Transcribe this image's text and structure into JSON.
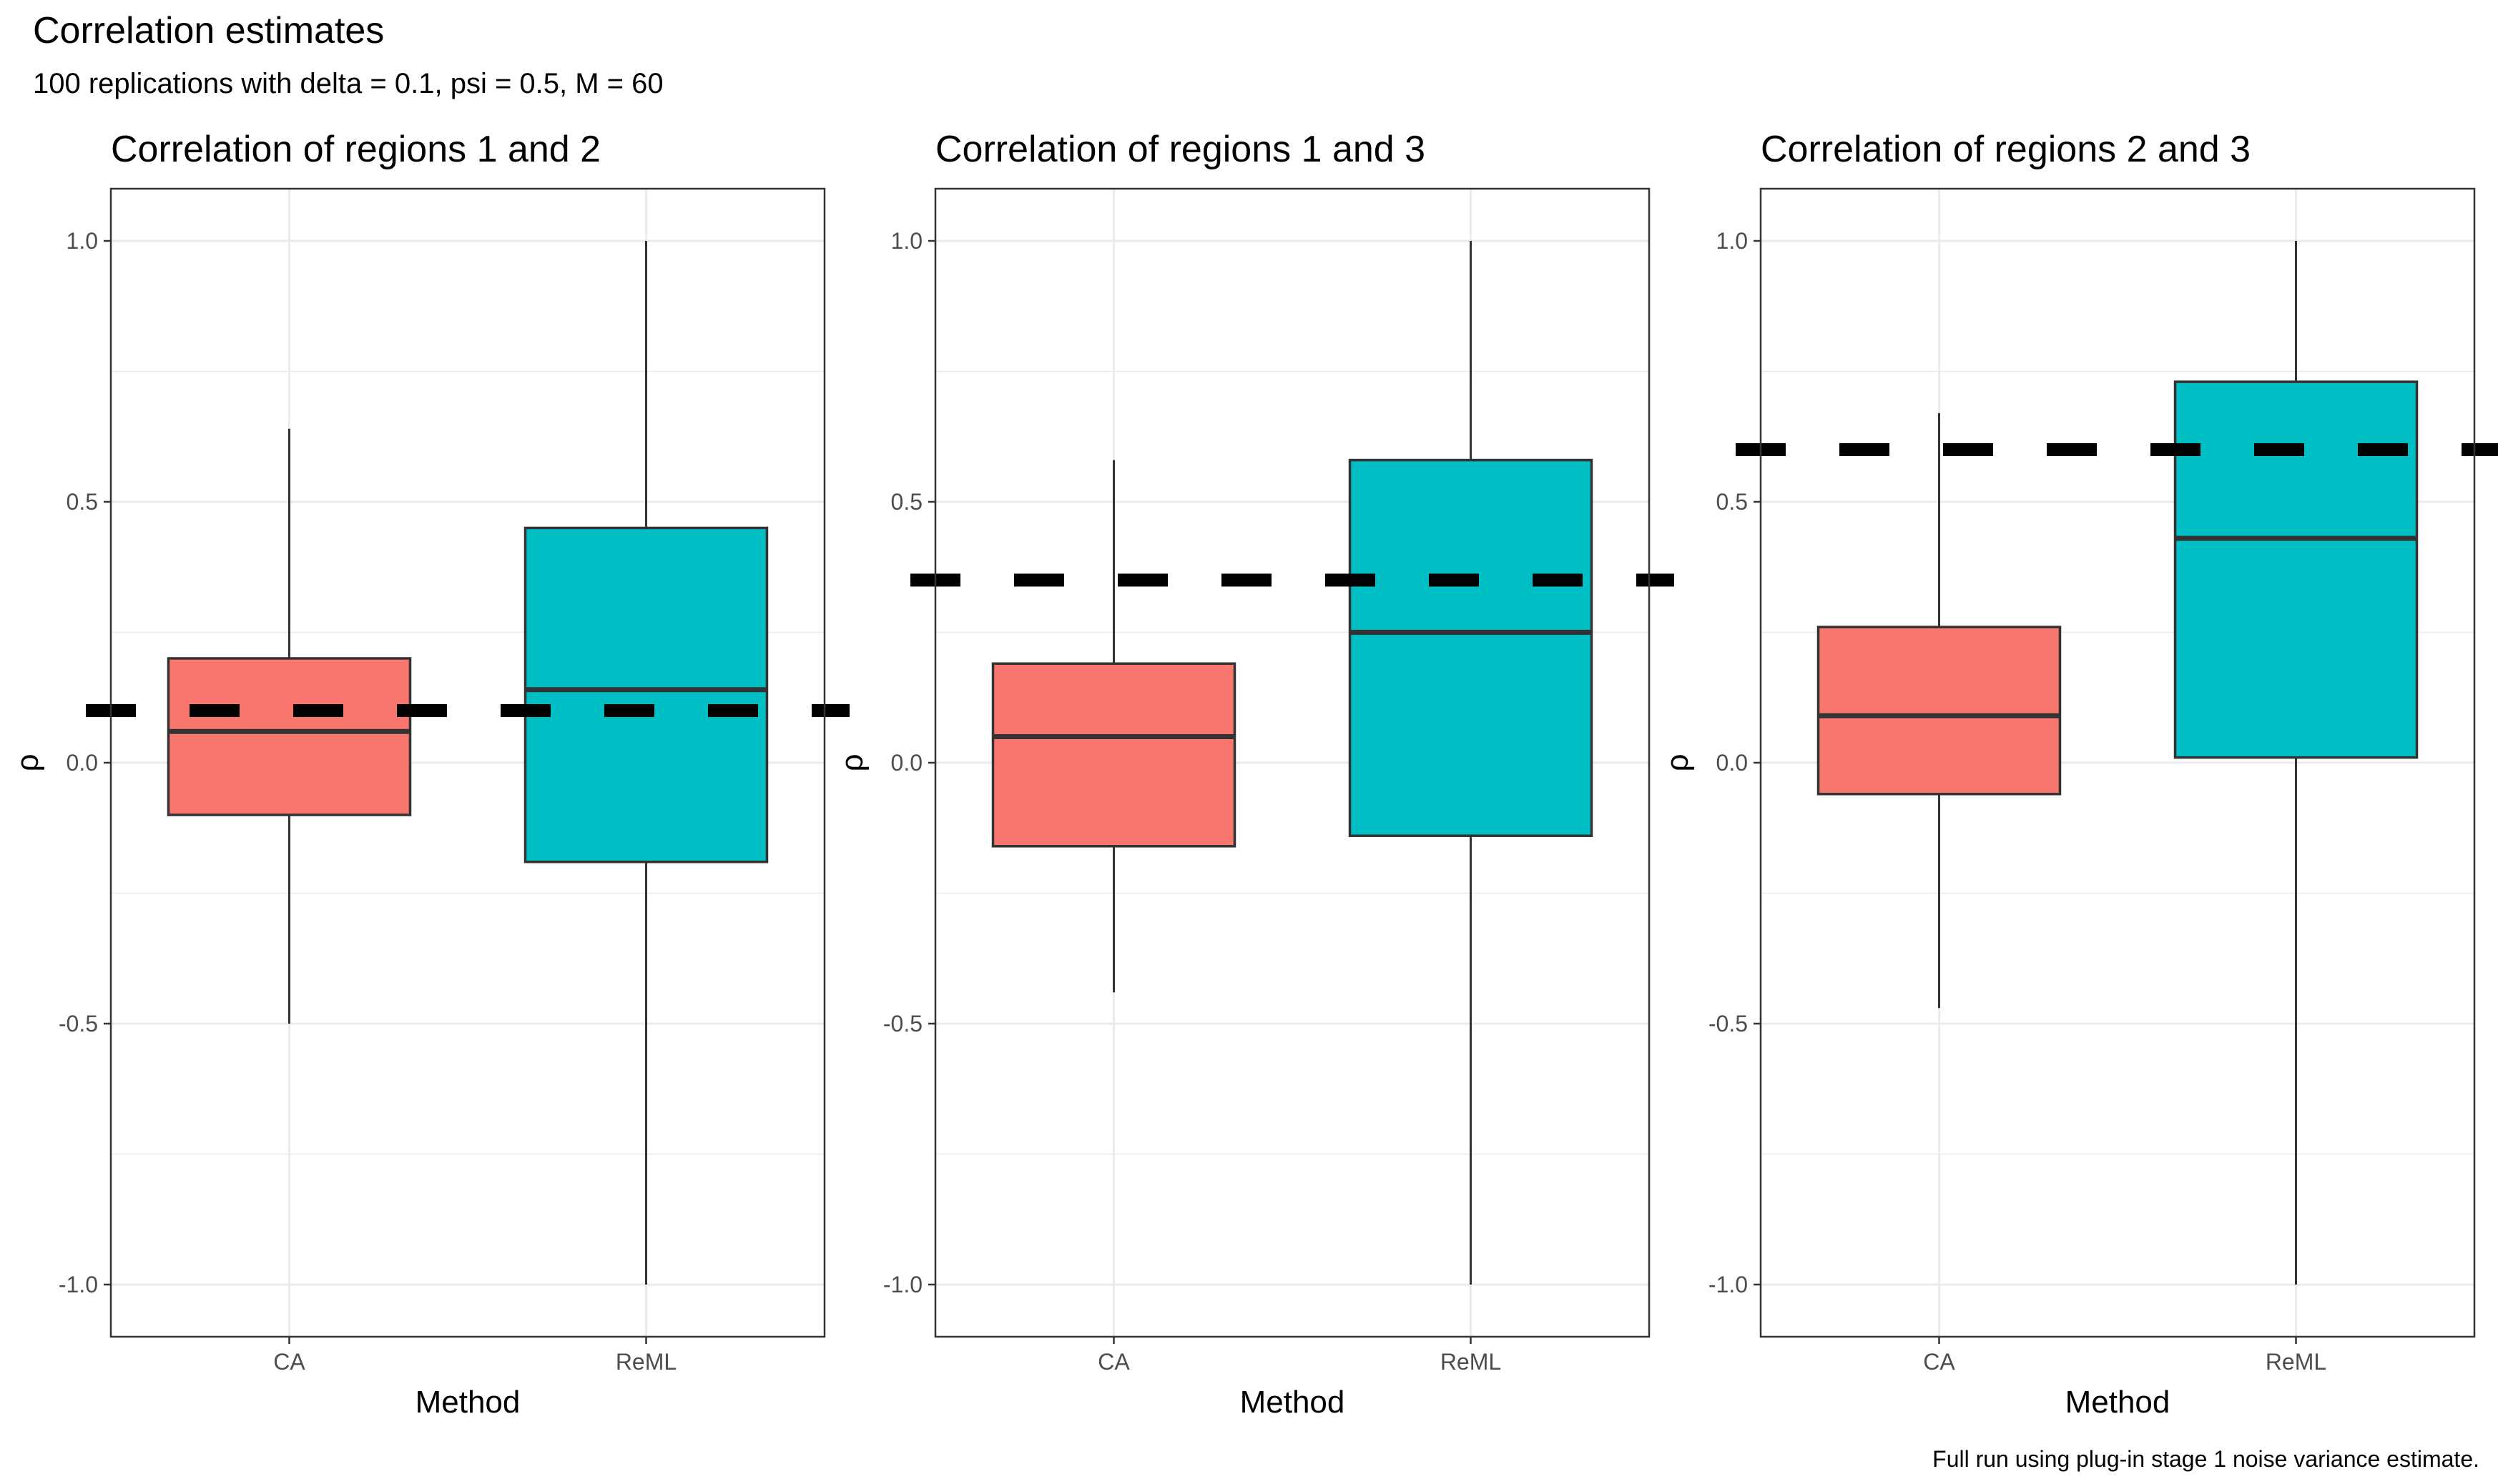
{
  "title": "Correlation estimates",
  "subtitle": "100 replications with delta = 0.1, psi = 0.5, M = 60",
  "caption": "Full run using plug-in stage 1 noise variance estimate.",
  "colors": {
    "CA": "#F8766D",
    "ReML": "#00BFC4",
    "reference_line": "#000000",
    "grid": "#ebebeb",
    "panel_border": "#333333"
  },
  "chart_data": [
    {
      "type": "boxplot",
      "title": "Correlation of regions 1 and 2",
      "xlabel": "Method",
      "ylabel": "ρ",
      "categories": [
        "CA",
        "ReML"
      ],
      "yticks": [
        "-1.0",
        "-0.5",
        "0.0",
        "0.5",
        "1.0"
      ],
      "ylim": [
        -1.1,
        1.1
      ],
      "reference_value": 0.1,
      "boxes": [
        {
          "category": "CA",
          "min": -0.5,
          "q1": -0.1,
          "median": 0.06,
          "q3": 0.2,
          "max": 0.64
        },
        {
          "category": "ReML",
          "min": -1.0,
          "q1": -0.19,
          "median": 0.14,
          "q3": 0.45,
          "max": 1.0
        }
      ]
    },
    {
      "type": "boxplot",
      "title": "Correlation of regions 1 and 3",
      "xlabel": "Method",
      "ylabel": "ρ",
      "categories": [
        "CA",
        "ReML"
      ],
      "yticks": [
        "-1.0",
        "-0.5",
        "0.0",
        "0.5",
        "1.0"
      ],
      "ylim": [
        -1.1,
        1.1
      ],
      "reference_value": 0.35,
      "boxes": [
        {
          "category": "CA",
          "min": -0.44,
          "q1": -0.16,
          "median": 0.05,
          "q3": 0.19,
          "max": 0.58
        },
        {
          "category": "ReML",
          "min": -1.0,
          "q1": -0.14,
          "median": 0.25,
          "q3": 0.58,
          "max": 1.0
        }
      ]
    },
    {
      "type": "boxplot",
      "title": "Correlation of regions 2 and 3",
      "xlabel": "Method",
      "ylabel": "ρ",
      "categories": [
        "CA",
        "ReML"
      ],
      "yticks": [
        "-1.0",
        "-0.5",
        "0.0",
        "0.5",
        "1.0"
      ],
      "ylim": [
        -1.1,
        1.1
      ],
      "reference_value": 0.6,
      "boxes": [
        {
          "category": "CA",
          "min": -0.47,
          "q1": -0.06,
          "median": 0.09,
          "q3": 0.26,
          "max": 0.67
        },
        {
          "category": "ReML",
          "min": -1.0,
          "q1": 0.01,
          "median": 0.43,
          "q3": 0.73,
          "max": 1.0
        }
      ]
    }
  ]
}
